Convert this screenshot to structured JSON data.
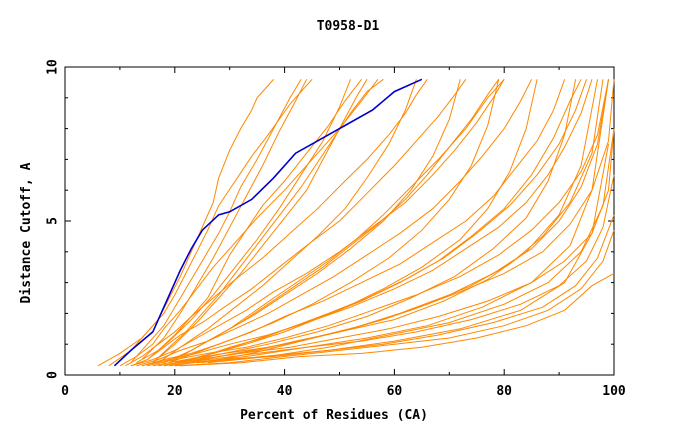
{
  "chart_data": {
    "type": "line",
    "title": "T0958-D1",
    "xlabel": "Percent of Residues (CA)",
    "ylabel": "Distance Cutoff, A",
    "xlim": [
      0,
      100
    ],
    "ylim": [
      0,
      10
    ],
    "x_ticks": [
      "0",
      "20",
      "40",
      "60",
      "80",
      "100"
    ],
    "y_ticks": [
      "0",
      "5",
      "10"
    ],
    "grid": false,
    "legend": "none",
    "colors": {
      "highlight": "#0000cc",
      "others": "#ff8800",
      "axis": "#000000"
    },
    "highlight_series": {
      "x": [
        9,
        12,
        16,
        19,
        21,
        23,
        25,
        28,
        30,
        34,
        38,
        42,
        46,
        51,
        56,
        60,
        65
      ],
      "y": [
        0.3,
        0.8,
        1.4,
        2.6,
        3.4,
        4.1,
        4.7,
        5.2,
        5.3,
        5.7,
        6.4,
        7.2,
        7.6,
        8.1,
        8.6,
        9.2,
        9.6
      ]
    },
    "other_series": [
      {
        "x": [
          6,
          10,
          14,
          17,
          19,
          21,
          23,
          25,
          27,
          28,
          30,
          32,
          34,
          35,
          37,
          38
        ],
        "y": [
          0.3,
          0.7,
          1.2,
          1.8,
          2.5,
          3.2,
          4.0,
          4.8,
          5.6,
          6.4,
          7.3,
          8.0,
          8.6,
          9.0,
          9.4,
          9.6
        ]
      },
      {
        "x": [
          8,
          12,
          15,
          18,
          20,
          22,
          24,
          26,
          28,
          31,
          34,
          37,
          39,
          41,
          43,
          45
        ],
        "y": [
          0.3,
          0.8,
          1.4,
          2.0,
          2.6,
          3.3,
          4.0,
          4.7,
          5.5,
          6.3,
          7.1,
          7.8,
          8.3,
          8.8,
          9.2,
          9.6
        ]
      },
      {
        "x": [
          10,
          13,
          16,
          18,
          21,
          24,
          27,
          31,
          35,
          40,
          45,
          50,
          54,
          57
        ],
        "y": [
          0.3,
          0.6,
          1.0,
          1.5,
          2.1,
          2.8,
          3.5,
          4.3,
          5.1,
          6.0,
          7.0,
          8.0,
          8.9,
          9.6
        ]
      },
      {
        "x": [
          11,
          14,
          17,
          20,
          23,
          27,
          31,
          36,
          41,
          46,
          51,
          55,
          59,
          62,
          64,
          66
        ],
        "y": [
          0.3,
          0.6,
          1.0,
          1.4,
          1.9,
          2.5,
          3.1,
          3.8,
          4.6,
          5.4,
          6.3,
          7.0,
          7.8,
          8.5,
          9.1,
          9.6
        ]
      },
      {
        "x": [
          12,
          15,
          18,
          21,
          25,
          29,
          34,
          39,
          44,
          50,
          55,
          60,
          64,
          68,
          71,
          73
        ],
        "y": [
          0.3,
          0.5,
          0.9,
          1.3,
          1.7,
          2.2,
          2.8,
          3.5,
          4.2,
          5.0,
          5.9,
          6.8,
          7.6,
          8.4,
          9.1,
          9.6
        ]
      },
      {
        "x": [
          12,
          16,
          20,
          24,
          28,
          33,
          38,
          44,
          50,
          56,
          62,
          67,
          71,
          75,
          78,
          80
        ],
        "y": [
          0.3,
          0.5,
          0.8,
          1.2,
          1.6,
          2.1,
          2.7,
          3.3,
          4.0,
          4.8,
          5.6,
          6.5,
          7.3,
          8.2,
          9.0,
          9.6
        ]
      },
      {
        "x": [
          13,
          17,
          21,
          26,
          31,
          37,
          43,
          49,
          55,
          61,
          67,
          72,
          76,
          80,
          83,
          85
        ],
        "y": [
          0.3,
          0.5,
          0.8,
          1.1,
          1.5,
          2.0,
          2.6,
          3.2,
          3.9,
          4.6,
          5.4,
          6.3,
          7.1,
          8.0,
          8.9,
          9.6
        ]
      },
      {
        "x": [
          14,
          18,
          23,
          28,
          34,
          40,
          47,
          54,
          61,
          67,
          73,
          78,
          82,
          86,
          89,
          91
        ],
        "y": [
          0.3,
          0.5,
          0.7,
          1.0,
          1.4,
          1.9,
          2.4,
          3.0,
          3.6,
          4.3,
          5.0,
          5.8,
          6.7,
          7.6,
          8.6,
          9.6
        ]
      },
      {
        "x": [
          14,
          19,
          24,
          30,
          37,
          44,
          52,
          60,
          67,
          73,
          79,
          84,
          88,
          91,
          94,
          96
        ],
        "y": [
          0.3,
          0.5,
          0.7,
          1.0,
          1.3,
          1.7,
          2.2,
          2.8,
          3.4,
          4.1,
          4.8,
          5.6,
          6.5,
          7.4,
          8.5,
          9.6
        ]
      },
      {
        "x": [
          15,
          20,
          26,
          33,
          40,
          48,
          56,
          64,
          72,
          79,
          85,
          90,
          94,
          97,
          99
        ],
        "y": [
          0.3,
          0.5,
          0.7,
          0.9,
          1.2,
          1.6,
          2.1,
          2.6,
          3.2,
          3.9,
          4.7,
          5.6,
          6.6,
          7.8,
          9.6
        ]
      },
      {
        "x": [
          16,
          22,
          29,
          37,
          45,
          54,
          63,
          72,
          80,
          87,
          92,
          96,
          99,
          100
        ],
        "y": [
          0.3,
          0.5,
          0.7,
          0.9,
          1.2,
          1.6,
          2.1,
          2.7,
          3.3,
          4.0,
          4.9,
          6.0,
          7.6,
          9.6
        ]
      },
      {
        "x": [
          17,
          24,
          32,
          41,
          50,
          59,
          68,
          77,
          85,
          91,
          96,
          99,
          100
        ],
        "y": [
          0.3,
          0.5,
          0.7,
          0.9,
          1.2,
          1.5,
          1.9,
          2.4,
          3.0,
          3.7,
          4.6,
          6.0,
          8.0
        ]
      },
      {
        "x": [
          18,
          26,
          35,
          44,
          54,
          64,
          74,
          83,
          90,
          95,
          98,
          100
        ],
        "y": [
          0.3,
          0.5,
          0.7,
          0.9,
          1.1,
          1.4,
          1.8,
          2.3,
          2.9,
          3.7,
          4.8,
          6.5
        ]
      },
      {
        "x": [
          19,
          28,
          38,
          48,
          58,
          68,
          78,
          87,
          93,
          97,
          100
        ],
        "y": [
          0.3,
          0.5,
          0.6,
          0.8,
          1.0,
          1.3,
          1.7,
          2.2,
          2.9,
          3.8,
          5.2
        ]
      },
      {
        "x": [
          20,
          30,
          40,
          50,
          60,
          70,
          80,
          88,
          94,
          98,
          100
        ],
        "y": [
          0.3,
          0.4,
          0.6,
          0.8,
          1.0,
          1.2,
          1.6,
          2.1,
          2.8,
          3.7,
          4.7
        ]
      },
      {
        "x": [
          21,
          32,
          43,
          54,
          65,
          75,
          84,
          91,
          96,
          100
        ],
        "y": [
          0.3,
          0.4,
          0.6,
          0.7,
          0.9,
          1.2,
          1.6,
          2.1,
          2.9,
          3.3
        ]
      },
      {
        "x": [
          16,
          20,
          24,
          28,
          32,
          36,
          40,
          44,
          47,
          50,
          53,
          55
        ],
        "y": [
          0.4,
          1.0,
          1.7,
          2.5,
          3.3,
          4.2,
          5.1,
          6.0,
          7.0,
          8.0,
          9.0,
          9.6
        ]
      },
      {
        "x": [
          17,
          21,
          26,
          31,
          36,
          41,
          46,
          51,
          55,
          59,
          62,
          64
        ],
        "y": [
          0.4,
          0.9,
          1.5,
          2.2,
          2.9,
          3.7,
          4.5,
          5.4,
          6.4,
          7.5,
          8.6,
          9.6
        ]
      },
      {
        "x": [
          18,
          23,
          28,
          34,
          40,
          46,
          52,
          58,
          63,
          67,
          70,
          72
        ],
        "y": [
          0.4,
          0.8,
          1.3,
          1.9,
          2.6,
          3.3,
          4.1,
          5.0,
          6.0,
          7.1,
          8.3,
          9.6
        ]
      },
      {
        "x": [
          19,
          25,
          31,
          38,
          45,
          52,
          59,
          65,
          70,
          74,
          77,
          79
        ],
        "y": [
          0.4,
          0.8,
          1.2,
          1.7,
          2.3,
          3.0,
          3.8,
          4.7,
          5.7,
          6.8,
          8.1,
          9.6
        ]
      },
      {
        "x": [
          20,
          27,
          34,
          42,
          50,
          58,
          65,
          72,
          77,
          81,
          84,
          86
        ],
        "y": [
          0.4,
          0.7,
          1.1,
          1.6,
          2.1,
          2.8,
          3.5,
          4.4,
          5.4,
          6.6,
          8.0,
          9.6
        ]
      },
      {
        "x": [
          21,
          29,
          37,
          46,
          55,
          63,
          71,
          78,
          84,
          88,
          91,
          93
        ],
        "y": [
          0.4,
          0.7,
          1.0,
          1.4,
          1.9,
          2.5,
          3.2,
          4.1,
          5.1,
          6.3,
          7.8,
          9.6
        ]
      },
      {
        "x": [
          22,
          31,
          40,
          50,
          60,
          69,
          77,
          84,
          90,
          94,
          97
        ],
        "y": [
          0.4,
          0.7,
          1.0,
          1.4,
          1.8,
          2.4,
          3.1,
          4.0,
          5.2,
          6.8,
          9.6
        ]
      },
      {
        "x": [
          14,
          18,
          21,
          24,
          27,
          30,
          33,
          36,
          39,
          42,
          44
        ],
        "y": [
          0.5,
          1.2,
          2.0,
          2.9,
          3.8,
          4.8,
          5.8,
          6.8,
          7.9,
          8.9,
          9.6
        ]
      },
      {
        "x": [
          15,
          19,
          23,
          27,
          31,
          35,
          39,
          43,
          47,
          50,
          52
        ],
        "y": [
          0.5,
          1.1,
          1.8,
          2.6,
          3.5,
          4.4,
          5.4,
          6.5,
          7.6,
          8.7,
          9.6
        ]
      },
      {
        "x": [
          23,
          33,
          44,
          55,
          66,
          76,
          85,
          92,
          96,
          99
        ],
        "y": [
          0.4,
          0.6,
          0.9,
          1.2,
          1.6,
          2.2,
          3.0,
          4.2,
          6.0,
          9.6
        ]
      },
      {
        "x": [
          24,
          36,
          48,
          60,
          72,
          83,
          91,
          96,
          99
        ],
        "y": [
          0.4,
          0.6,
          0.8,
          1.1,
          1.5,
          2.1,
          3.0,
          4.6,
          7.5
        ]
      },
      {
        "x": [
          12,
          15,
          18,
          20,
          22,
          24,
          26,
          28,
          30,
          32,
          35,
          38,
          41,
          43
        ],
        "y": [
          0.4,
          1.0,
          1.6,
          2.2,
          2.8,
          3.4,
          4.0,
          4.6,
          5.3,
          6.1,
          7.0,
          8.0,
          9.0,
          9.6
        ]
      },
      {
        "x": [
          18,
          22,
          26,
          30,
          34,
          38,
          43,
          48,
          53,
          58,
          63,
          68,
          73,
          77,
          80
        ],
        "y": [
          0.4,
          0.7,
          1.1,
          1.5,
          2.0,
          2.5,
          3.1,
          3.7,
          4.4,
          5.2,
          6.1,
          7.0,
          8.0,
          9.0,
          9.6
        ]
      },
      {
        "x": [
          20,
          25,
          30,
          36,
          42,
          48,
          55,
          62,
          69,
          75,
          81,
          86,
          90,
          93,
          95
        ],
        "y": [
          0.4,
          0.6,
          0.9,
          1.2,
          1.6,
          2.0,
          2.5,
          3.1,
          3.8,
          4.6,
          5.5,
          6.5,
          7.5,
          8.6,
          9.6
        ]
      },
      {
        "x": [
          22,
          28,
          35,
          42,
          50,
          58,
          66,
          74,
          81,
          87,
          92,
          96,
          98
        ],
        "y": [
          0.4,
          0.6,
          0.8,
          1.1,
          1.4,
          1.8,
          2.3,
          2.9,
          3.6,
          4.5,
          5.6,
          7.2,
          9.6
        ]
      },
      {
        "x": [
          13,
          17,
          20,
          23,
          26,
          28,
          30,
          33,
          36,
          40,
          44,
          48,
          51,
          54
        ],
        "y": [
          0.4,
          0.8,
          1.3,
          1.9,
          2.5,
          3.2,
          3.9,
          4.7,
          5.5,
          6.3,
          7.2,
          8.1,
          8.9,
          9.6
        ]
      },
      {
        "x": [
          25,
          34,
          43,
          52,
          61,
          70,
          78,
          85,
          90,
          94,
          97,
          99
        ],
        "y": [
          0.4,
          0.7,
          1.1,
          1.5,
          2.0,
          2.6,
          3.3,
          4.1,
          5.0,
          6.1,
          7.5,
          9.6
        ]
      },
      {
        "x": [
          26,
          37,
          48,
          59,
          70,
          80,
          88,
          94,
          98,
          100
        ],
        "y": [
          0.4,
          0.6,
          0.9,
          1.3,
          1.7,
          2.3,
          3.0,
          4.0,
          5.5,
          8.0
        ]
      },
      {
        "x": [
          16,
          19,
          22,
          25,
          28,
          31,
          34,
          37,
          40,
          43,
          46,
          49,
          52,
          55,
          58
        ],
        "y": [
          0.4,
          0.9,
          1.4,
          2.0,
          2.6,
          3.3,
          4.0,
          4.7,
          5.4,
          6.1,
          6.9,
          7.7,
          8.5,
          9.2,
          9.6
        ]
      },
      {
        "x": [
          19,
          23,
          27,
          32,
          37,
          42,
          47,
          52,
          57,
          62,
          66,
          70,
          74,
          77,
          79
        ],
        "y": [
          0.4,
          0.8,
          1.2,
          1.7,
          2.3,
          2.9,
          3.5,
          4.2,
          4.9,
          5.7,
          6.5,
          7.4,
          8.3,
          9.1,
          9.6
        ]
      },
      {
        "x": [
          21,
          27,
          33,
          40,
          47,
          54,
          61,
          68,
          74,
          80,
          85,
          89,
          92,
          94
        ],
        "y": [
          0.4,
          0.7,
          1.0,
          1.4,
          1.9,
          2.4,
          3.0,
          3.7,
          4.5,
          5.4,
          6.5,
          7.7,
          8.9,
          9.6
        ]
      }
    ]
  }
}
